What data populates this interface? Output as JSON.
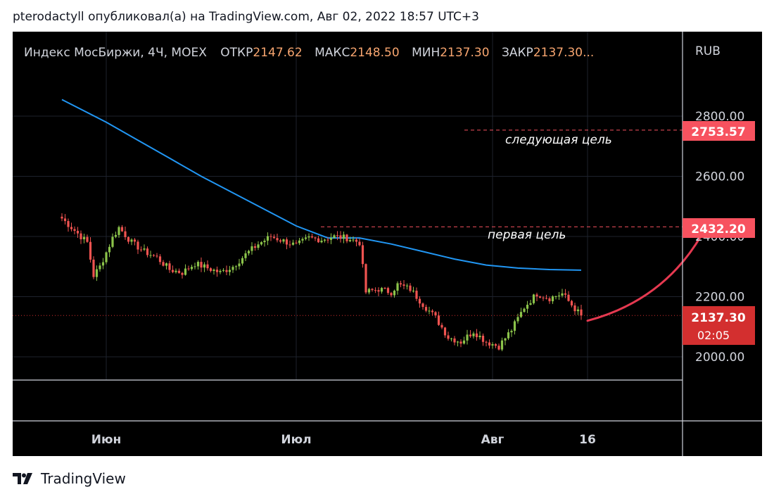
{
  "header": {
    "text": "pterodactyll опубликовал(а) на TradingView.com, Авг 02, 2022 18:57 UTC+3"
  },
  "legend": {
    "symbol": "Индекс МосБиржи, 4Ч, MOEX",
    "open_label": "ОТКР",
    "open_value": "2147.62",
    "high_label": "МАКС",
    "high_value": "2148.50",
    "low_label": "МИН",
    "low_value": "2137.30",
    "close_label": "ЗАКР",
    "close_value": "2137.30..."
  },
  "price_axis": {
    "currency": "RUB",
    "ticks": [
      "2800.00",
      "2600.00",
      "2400.00",
      "2200.00",
      "2000.00"
    ]
  },
  "time_axis": {
    "ticks": [
      "Июн",
      "Июл",
      "Авг",
      "16"
    ]
  },
  "annotations": {
    "target2_label": "следующая цель",
    "target2_value": "2753.57",
    "target1_label": "первая цель",
    "target1_value": "2432.20",
    "last_price": "2137.30",
    "countdown": "02:05"
  },
  "colors": {
    "up": "#26a69a",
    "up_candle": "#8bc34a",
    "down": "#ef5350",
    "ma": "#2196f3",
    "target": "#f7525f",
    "price_tag": "#d32f2f",
    "projection": "#e53950",
    "open_value_color": "#f7a56f"
  },
  "brand": {
    "name": "TradingView",
    "icon": "tradingview-logo-icon"
  },
  "chart_data": {
    "type": "candlestick",
    "title": "Индекс МосБиржи, 4Ч, MOEX",
    "ylabel": "RUB",
    "ylim": [
      1925,
      2980
    ],
    "x_range_days": [
      -7,
      57
    ],
    "x_ticks": [
      {
        "label": "Июн",
        "day": 0
      },
      {
        "label": "Июл",
        "day": 30
      },
      {
        "label": "Авг",
        "day": 61
      },
      {
        "label": "16",
        "day": 76
      }
    ],
    "candle_anchors": [
      {
        "day": -7,
        "price": 2460
      },
      {
        "day": -5,
        "price": 2420
      },
      {
        "day": -3,
        "price": 2380
      },
      {
        "day": -2,
        "price": 2270
      },
      {
        "day": -1,
        "price": 2300
      },
      {
        "day": 1,
        "price": 2395
      },
      {
        "day": 2,
        "price": 2430
      },
      {
        "day": 4,
        "price": 2380
      },
      {
        "day": 6,
        "price": 2350
      },
      {
        "day": 8,
        "price": 2330
      },
      {
        "day": 10,
        "price": 2290
      },
      {
        "day": 12,
        "price": 2280
      },
      {
        "day": 14,
        "price": 2310
      },
      {
        "day": 16,
        "price": 2295
      },
      {
        "day": 18,
        "price": 2280
      },
      {
        "day": 20,
        "price": 2300
      },
      {
        "day": 22,
        "price": 2340
      },
      {
        "day": 24,
        "price": 2375
      },
      {
        "day": 26,
        "price": 2400
      },
      {
        "day": 28,
        "price": 2385
      },
      {
        "day": 30,
        "price": 2370
      },
      {
        "day": 32,
        "price": 2395
      },
      {
        "day": 34,
        "price": 2390
      },
      {
        "day": 36,
        "price": 2400
      },
      {
        "day": 38,
        "price": 2395
      },
      {
        "day": 40,
        "price": 2380
      },
      {
        "day": 41,
        "price": 2215
      },
      {
        "day": 43,
        "price": 2225
      },
      {
        "day": 45,
        "price": 2215
      },
      {
        "day": 46,
        "price": 2240
      },
      {
        "day": 48,
        "price": 2225
      },
      {
        "day": 50,
        "price": 2175
      },
      {
        "day": 52,
        "price": 2130
      },
      {
        "day": 54,
        "price": 2065
      },
      {
        "day": 56,
        "price": 2050
      },
      {
        "day": 58,
        "price": 2085
      },
      {
        "day": 60,
        "price": 2050
      },
      {
        "day": 62,
        "price": 2035
      },
      {
        "day": 64,
        "price": 2090
      },
      {
        "day": 66,
        "price": 2165
      },
      {
        "day": 68,
        "price": 2210
      },
      {
        "day": 70,
        "price": 2195
      },
      {
        "day": 72,
        "price": 2210
      },
      {
        "day": 74,
        "price": 2160
      },
      {
        "day": 75,
        "price": 2137.3
      }
    ],
    "moving_average": [
      {
        "day": -7,
        "price": 2855
      },
      {
        "day": 0,
        "price": 2780
      },
      {
        "day": 5,
        "price": 2720
      },
      {
        "day": 10,
        "price": 2660
      },
      {
        "day": 15,
        "price": 2600
      },
      {
        "day": 20,
        "price": 2545
      },
      {
        "day": 25,
        "price": 2490
      },
      {
        "day": 30,
        "price": 2435
      },
      {
        "day": 35,
        "price": 2395
      },
      {
        "day": 40,
        "price": 2395
      },
      {
        "day": 45,
        "price": 2375
      },
      {
        "day": 50,
        "price": 2350
      },
      {
        "day": 55,
        "price": 2325
      },
      {
        "day": 60,
        "price": 2305
      },
      {
        "day": 65,
        "price": 2295
      },
      {
        "day": 70,
        "price": 2290
      },
      {
        "day": 75,
        "price": 2288
      }
    ],
    "target_lines": [
      {
        "name": "следующая цель",
        "value": 2753.57
      },
      {
        "name": "первая цель",
        "value": 2432.2
      }
    ],
    "last_price": 2137.3,
    "projection_curve": [
      {
        "day": 76,
        "price": 2120
      },
      {
        "day": 84,
        "price": 2165
      },
      {
        "day": 90,
        "price": 2260
      },
      {
        "day": 94,
        "price": 2405
      }
    ],
    "grid": true
  }
}
